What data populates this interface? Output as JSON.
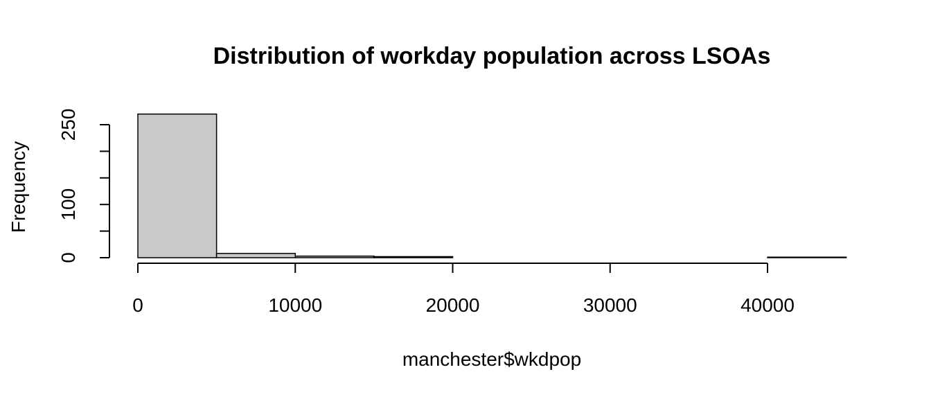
{
  "chart_data": {
    "type": "bar",
    "subtype": "histogram",
    "title": "Distribution of workday population across LSOAs",
    "xlabel": "manchester$wkdpop",
    "ylabel": "Frequency",
    "bins": [
      {
        "from": 0,
        "to": 5000,
        "count": 270
      },
      {
        "from": 5000,
        "to": 10000,
        "count": 8
      },
      {
        "from": 10000,
        "to": 15000,
        "count": 3
      },
      {
        "from": 15000,
        "to": 20000,
        "count": 2
      },
      {
        "from": 20000,
        "to": 25000,
        "count": 0
      },
      {
        "from": 25000,
        "to": 30000,
        "count": 0
      },
      {
        "from": 30000,
        "to": 35000,
        "count": 0
      },
      {
        "from": 35000,
        "to": 40000,
        "count": 0
      },
      {
        "from": 40000,
        "to": 45000,
        "count": 1
      }
    ],
    "xlim": [
      0,
      45000
    ],
    "ylim": [
      0,
      270
    ],
    "x_ticks": [
      0,
      10000,
      20000,
      30000,
      40000
    ],
    "x_tick_labels": [
      "0",
      "10000",
      "20000",
      "30000",
      "40000"
    ],
    "y_ticks": [
      0,
      50,
      100,
      150,
      200,
      250
    ],
    "y_tick_labels": [
      "0",
      "",
      "100",
      "",
      "",
      "250"
    ],
    "bar_fill": "#c9c9c9",
    "bar_stroke": "#000000",
    "grid": false,
    "legend": "none"
  }
}
